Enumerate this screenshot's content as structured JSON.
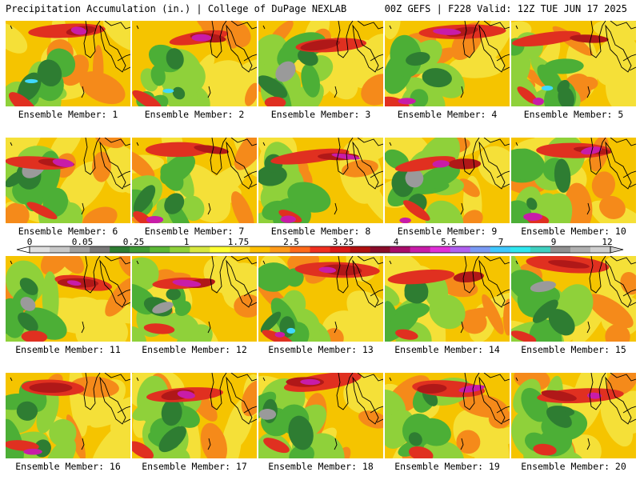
{
  "header": {
    "title": "Precipitation Accumulation (in.) | College of DuPage NEXLAB",
    "run_info": "00Z GEFS | F228 Valid: 12Z TUE JUN 17 2025"
  },
  "panels": [
    {
      "member": 1,
      "label": "Ensemble Member: 1"
    },
    {
      "member": 2,
      "label": "Ensemble Member: 2"
    },
    {
      "member": 3,
      "label": "Ensemble Member: 3"
    },
    {
      "member": 4,
      "label": "Ensemble Member: 4"
    },
    {
      "member": 5,
      "label": "Ensemble Member: 5"
    },
    {
      "member": 6,
      "label": "Ensemble Member: 6"
    },
    {
      "member": 7,
      "label": "Ensemble Member: 7"
    },
    {
      "member": 8,
      "label": "Ensemble Member: 8"
    },
    {
      "member": 9,
      "label": "Ensemble Member: 9"
    },
    {
      "member": 10,
      "label": "Ensemble Member: 10"
    },
    {
      "member": 11,
      "label": "Ensemble Member: 11"
    },
    {
      "member": 12,
      "label": "Ensemble Member: 12"
    },
    {
      "member": 13,
      "label": "Ensemble Member: 13"
    },
    {
      "member": 14,
      "label": "Ensemble Member: 14"
    },
    {
      "member": 15,
      "label": "Ensemble Member: 15"
    },
    {
      "member": 16,
      "label": "Ensemble Member: 16"
    },
    {
      "member": 17,
      "label": "Ensemble Member: 17"
    },
    {
      "member": 18,
      "label": "Ensemble Member: 18"
    },
    {
      "member": 19,
      "label": "Ensemble Member: 19"
    },
    {
      "member": 20,
      "label": "Ensemble Member: 20"
    }
  ],
  "colorbar": {
    "tick_labels": [
      "0",
      "0.05",
      "0.25",
      "1",
      "1.75",
      "2.5",
      "3.25",
      "4",
      "5.5",
      "7",
      "9",
      "12"
    ],
    "colors": [
      "#e0e0e0",
      "#c8c8c8",
      "#a0a0a0",
      "#787878",
      "#2e7d32",
      "#3f9a35",
      "#5cb836",
      "#8fd13a",
      "#d8e840",
      "#ffff33",
      "#ffe033",
      "#ffc000",
      "#ff9a1a",
      "#ff6a1a",
      "#f03020",
      "#d81818",
      "#b01010",
      "#8a0c2a",
      "#a80c6a",
      "#c81ca8",
      "#e030d8",
      "#b060f0",
      "#7a9af5",
      "#40c8ff",
      "#30e8f0",
      "#40d0c0",
      "#909090",
      "#b0b0b0",
      "#d0d0d0"
    ]
  },
  "palette": {
    "low_gray": "#9a9a9a",
    "dark_green": "#2e7d32",
    "green": "#4caf36",
    "light_green": "#8fd13a",
    "yellow": "#f5e038",
    "gold": "#f5c400",
    "orange": "#f58a1a",
    "red": "#e03020",
    "dark_red": "#b01818",
    "magenta": "#c81ca8",
    "violet": "#b060f0",
    "cyan": "#40d8ff",
    "coastline": "#000000"
  }
}
